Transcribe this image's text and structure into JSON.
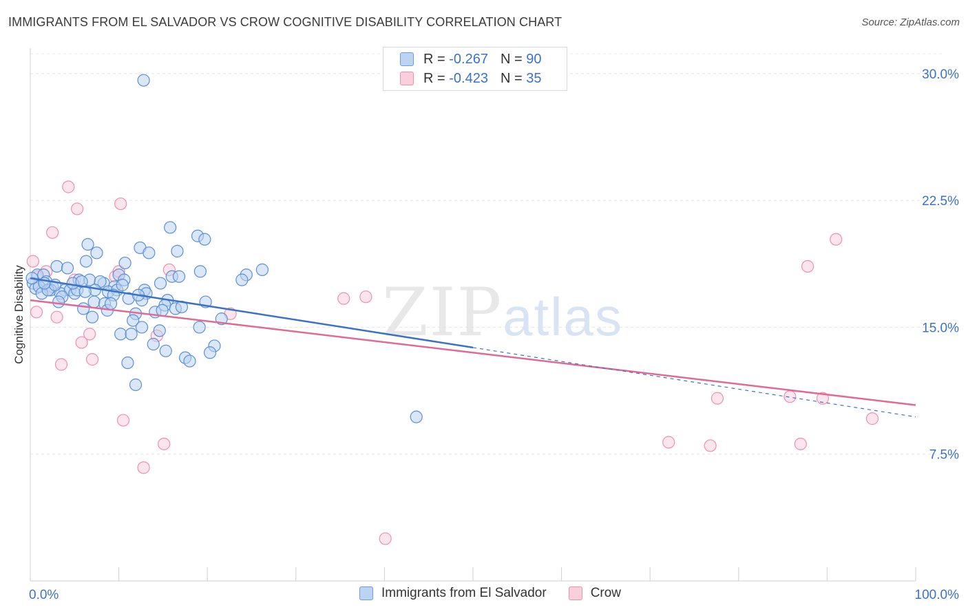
{
  "header": {
    "title": "IMMIGRANTS FROM EL SALVADOR VS CROW COGNITIVE DISABILITY CORRELATION CHART",
    "source": "Source: ZipAtlas.com"
  },
  "watermark": {
    "zip": "ZIP",
    "atlas": "atlas"
  },
  "legend_top": [
    {
      "r_label": "R =",
      "r_value": "-0.267",
      "n_label": "N =",
      "n_value": "90"
    },
    {
      "r_label": "R =",
      "r_value": "-0.423",
      "n_label": "N =",
      "n_value": "35"
    }
  ],
  "colors": {
    "blue": "#6a9ee0",
    "blue_line": "#3a72c8",
    "pink": "#ee8fb0",
    "pink_line": "#e06a95",
    "axis_label": "#3a72c8"
  },
  "chart_data": {
    "type": "scatter",
    "title": "IMMIGRANTS FROM EL SALVADOR VS CROW COGNITIVE DISABILITY CORRELATION CHART",
    "xlabel": "",
    "ylabel": "Cognitive Disability",
    "xlim": [
      0,
      100
    ],
    "ylim": [
      0,
      31.5
    ],
    "x_tick_labels": [
      "0.0%",
      "100.0%"
    ],
    "y_ticks": [
      7.5,
      15.0,
      22.5,
      30.0
    ],
    "y_tick_labels": [
      "7.5%",
      "15.0%",
      "22.5%",
      "30.0%"
    ],
    "grid": true,
    "legend_position": "bottom",
    "series": [
      {
        "name": "Immigrants from El Salvador",
        "color": "#6a9ee0",
        "trend": {
          "x0": 0,
          "y0": 17.9,
          "x1": 50,
          "y1": 13.8,
          "dash_to_x": 100,
          "dash_to_y": 9.7
        },
        "points": [
          [
            12.8,
            29.6
          ],
          [
            15.8,
            20.9
          ],
          [
            18.9,
            20.4
          ],
          [
            19.7,
            20.2
          ],
          [
            6.5,
            19.9
          ],
          [
            12.4,
            19.7
          ],
          [
            7.5,
            19.4
          ],
          [
            13.4,
            19.4
          ],
          [
            16.6,
            19.5
          ],
          [
            6.3,
            18.9
          ],
          [
            10.7,
            18.8
          ],
          [
            3.0,
            18.6
          ],
          [
            4.2,
            18.5
          ],
          [
            19.2,
            18.3
          ],
          [
            26.2,
            18.4
          ],
          [
            0.8,
            18.1
          ],
          [
            1.5,
            18.1
          ],
          [
            10.0,
            18.1
          ],
          [
            16.0,
            18.0
          ],
          [
            16.8,
            18.0
          ],
          [
            24.4,
            18.1
          ],
          [
            5.5,
            17.8
          ],
          [
            6.7,
            17.8
          ],
          [
            8.3,
            17.6
          ],
          [
            10.6,
            17.8
          ],
          [
            23.9,
            17.8
          ],
          [
            0.3,
            17.6
          ],
          [
            1.8,
            17.7
          ],
          [
            2.5,
            17.4
          ],
          [
            3.9,
            17.2
          ],
          [
            7.9,
            17.7
          ],
          [
            9.5,
            17.4
          ],
          [
            14.7,
            17.6
          ],
          [
            0.6,
            17.3
          ],
          [
            1.0,
            17.4
          ],
          [
            2.3,
            17.2
          ],
          [
            3.4,
            17.0
          ],
          [
            4.5,
            17.2
          ],
          [
            5.0,
            17.0
          ],
          [
            7.3,
            17.2
          ],
          [
            8.8,
            17.1
          ],
          [
            9.8,
            17.2
          ],
          [
            12.9,
            17.2
          ],
          [
            13.1,
            17.0
          ],
          [
            1.3,
            17.0
          ],
          [
            2.0,
            17.2
          ],
          [
            3.6,
            16.8
          ],
          [
            5.3,
            17.2
          ],
          [
            9.4,
            16.9
          ],
          [
            11.1,
            16.7
          ],
          [
            15.5,
            16.6
          ],
          [
            19.8,
            16.5
          ],
          [
            3.2,
            16.5
          ],
          [
            6.0,
            16.1
          ],
          [
            7.2,
            16.5
          ],
          [
            8.4,
            16.4
          ],
          [
            12.6,
            16.6
          ],
          [
            15.2,
            16.3
          ],
          [
            16.4,
            16.1
          ],
          [
            8.7,
            16.0
          ],
          [
            11.9,
            15.8
          ],
          [
            14.1,
            15.9
          ],
          [
            7.0,
            15.6
          ],
          [
            11.6,
            15.4
          ],
          [
            21.6,
            15.5
          ],
          [
            12.6,
            15.0
          ],
          [
            19.1,
            15.0
          ],
          [
            14.6,
            14.8
          ],
          [
            10.2,
            14.6
          ],
          [
            11.4,
            14.6
          ],
          [
            13.9,
            14.0
          ],
          [
            20.8,
            13.9
          ],
          [
            15.3,
            13.6
          ],
          [
            20.3,
            13.5
          ],
          [
            17.5,
            13.2
          ],
          [
            18.0,
            13.0
          ],
          [
            11.0,
            12.9
          ],
          [
            11.9,
            11.6
          ],
          [
            43.6,
            9.7
          ],
          [
            0.2,
            17.9
          ],
          [
            2.8,
            17.5
          ],
          [
            4.8,
            17.6
          ],
          [
            6.2,
            17.1
          ],
          [
            9.1,
            16.4
          ],
          [
            12.2,
            16.9
          ],
          [
            14.9,
            16.0
          ],
          [
            17.1,
            16.2
          ],
          [
            1.6,
            17.6
          ],
          [
            5.8,
            17.7
          ],
          [
            10.4,
            17.5
          ]
        ]
      },
      {
        "name": "Crow",
        "color": "#ee8fb0",
        "trend": {
          "x0": 0,
          "y0": 16.6,
          "x1": 100,
          "y1": 10.4
        },
        "points": [
          [
            0.3,
            18.9
          ],
          [
            4.3,
            23.3
          ],
          [
            10.2,
            22.3
          ],
          [
            5.3,
            22.0
          ],
          [
            2.5,
            20.6
          ],
          [
            91.0,
            20.2
          ],
          [
            87.8,
            18.6
          ],
          [
            15.7,
            18.4
          ],
          [
            1.8,
            18.3
          ],
          [
            0.8,
            18.0
          ],
          [
            9.6,
            18.0
          ],
          [
            10.0,
            18.3
          ],
          [
            5.0,
            17.8
          ],
          [
            2.0,
            17.2
          ],
          [
            35.4,
            16.7
          ],
          [
            37.9,
            16.8
          ],
          [
            0.7,
            15.9
          ],
          [
            22.6,
            15.8
          ],
          [
            3.0,
            15.6
          ],
          [
            14.3,
            14.5
          ],
          [
            6.7,
            14.6
          ],
          [
            5.8,
            14.1
          ],
          [
            7.0,
            13.1
          ],
          [
            3.5,
            12.8
          ],
          [
            77.6,
            10.8
          ],
          [
            85.8,
            10.9
          ],
          [
            89.5,
            10.8
          ],
          [
            10.5,
            9.5
          ],
          [
            95.1,
            9.6
          ],
          [
            72.1,
            8.2
          ],
          [
            76.8,
            8.0
          ],
          [
            87.0,
            8.1
          ],
          [
            15.1,
            8.1
          ],
          [
            12.8,
            6.7
          ],
          [
            40.1,
            2.5
          ]
        ]
      }
    ]
  }
}
